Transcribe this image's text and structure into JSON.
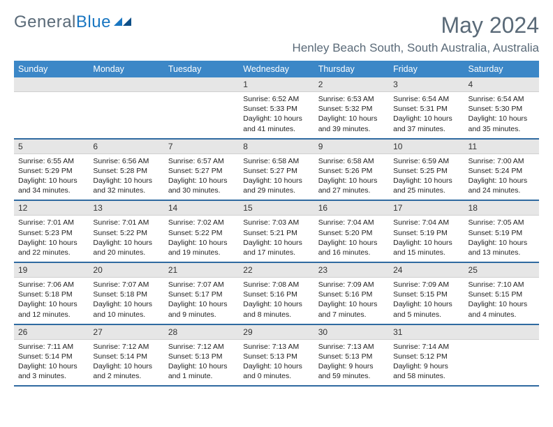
{
  "brand": {
    "part1": "General",
    "part2": "Blue"
  },
  "title": "May 2024",
  "location": "Henley Beach South, South Australia, Australia",
  "colors": {
    "header_bg": "#3c87c7",
    "header_text": "#ffffff",
    "date_bg": "#e6e6e6",
    "divider": "#2f6aa0",
    "title_color": "#5a6a78"
  },
  "daynames": [
    "Sunday",
    "Monday",
    "Tuesday",
    "Wednesday",
    "Thursday",
    "Friday",
    "Saturday"
  ],
  "weeks": [
    [
      {
        "date": "",
        "lines": []
      },
      {
        "date": "",
        "lines": []
      },
      {
        "date": "",
        "lines": []
      },
      {
        "date": "1",
        "lines": [
          "Sunrise: 6:52 AM",
          "Sunset: 5:33 PM",
          "Daylight: 10 hours",
          "and 41 minutes."
        ]
      },
      {
        "date": "2",
        "lines": [
          "Sunrise: 6:53 AM",
          "Sunset: 5:32 PM",
          "Daylight: 10 hours",
          "and 39 minutes."
        ]
      },
      {
        "date": "3",
        "lines": [
          "Sunrise: 6:54 AM",
          "Sunset: 5:31 PM",
          "Daylight: 10 hours",
          "and 37 minutes."
        ]
      },
      {
        "date": "4",
        "lines": [
          "Sunrise: 6:54 AM",
          "Sunset: 5:30 PM",
          "Daylight: 10 hours",
          "and 35 minutes."
        ]
      }
    ],
    [
      {
        "date": "5",
        "lines": [
          "Sunrise: 6:55 AM",
          "Sunset: 5:29 PM",
          "Daylight: 10 hours",
          "and 34 minutes."
        ]
      },
      {
        "date": "6",
        "lines": [
          "Sunrise: 6:56 AM",
          "Sunset: 5:28 PM",
          "Daylight: 10 hours",
          "and 32 minutes."
        ]
      },
      {
        "date": "7",
        "lines": [
          "Sunrise: 6:57 AM",
          "Sunset: 5:27 PM",
          "Daylight: 10 hours",
          "and 30 minutes."
        ]
      },
      {
        "date": "8",
        "lines": [
          "Sunrise: 6:58 AM",
          "Sunset: 5:27 PM",
          "Daylight: 10 hours",
          "and 29 minutes."
        ]
      },
      {
        "date": "9",
        "lines": [
          "Sunrise: 6:58 AM",
          "Sunset: 5:26 PM",
          "Daylight: 10 hours",
          "and 27 minutes."
        ]
      },
      {
        "date": "10",
        "lines": [
          "Sunrise: 6:59 AM",
          "Sunset: 5:25 PM",
          "Daylight: 10 hours",
          "and 25 minutes."
        ]
      },
      {
        "date": "11",
        "lines": [
          "Sunrise: 7:00 AM",
          "Sunset: 5:24 PM",
          "Daylight: 10 hours",
          "and 24 minutes."
        ]
      }
    ],
    [
      {
        "date": "12",
        "lines": [
          "Sunrise: 7:01 AM",
          "Sunset: 5:23 PM",
          "Daylight: 10 hours",
          "and 22 minutes."
        ]
      },
      {
        "date": "13",
        "lines": [
          "Sunrise: 7:01 AM",
          "Sunset: 5:22 PM",
          "Daylight: 10 hours",
          "and 20 minutes."
        ]
      },
      {
        "date": "14",
        "lines": [
          "Sunrise: 7:02 AM",
          "Sunset: 5:22 PM",
          "Daylight: 10 hours",
          "and 19 minutes."
        ]
      },
      {
        "date": "15",
        "lines": [
          "Sunrise: 7:03 AM",
          "Sunset: 5:21 PM",
          "Daylight: 10 hours",
          "and 17 minutes."
        ]
      },
      {
        "date": "16",
        "lines": [
          "Sunrise: 7:04 AM",
          "Sunset: 5:20 PM",
          "Daylight: 10 hours",
          "and 16 minutes."
        ]
      },
      {
        "date": "17",
        "lines": [
          "Sunrise: 7:04 AM",
          "Sunset: 5:19 PM",
          "Daylight: 10 hours",
          "and 15 minutes."
        ]
      },
      {
        "date": "18",
        "lines": [
          "Sunrise: 7:05 AM",
          "Sunset: 5:19 PM",
          "Daylight: 10 hours",
          "and 13 minutes."
        ]
      }
    ],
    [
      {
        "date": "19",
        "lines": [
          "Sunrise: 7:06 AM",
          "Sunset: 5:18 PM",
          "Daylight: 10 hours",
          "and 12 minutes."
        ]
      },
      {
        "date": "20",
        "lines": [
          "Sunrise: 7:07 AM",
          "Sunset: 5:18 PM",
          "Daylight: 10 hours",
          "and 10 minutes."
        ]
      },
      {
        "date": "21",
        "lines": [
          "Sunrise: 7:07 AM",
          "Sunset: 5:17 PM",
          "Daylight: 10 hours",
          "and 9 minutes."
        ]
      },
      {
        "date": "22",
        "lines": [
          "Sunrise: 7:08 AM",
          "Sunset: 5:16 PM",
          "Daylight: 10 hours",
          "and 8 minutes."
        ]
      },
      {
        "date": "23",
        "lines": [
          "Sunrise: 7:09 AM",
          "Sunset: 5:16 PM",
          "Daylight: 10 hours",
          "and 7 minutes."
        ]
      },
      {
        "date": "24",
        "lines": [
          "Sunrise: 7:09 AM",
          "Sunset: 5:15 PM",
          "Daylight: 10 hours",
          "and 5 minutes."
        ]
      },
      {
        "date": "25",
        "lines": [
          "Sunrise: 7:10 AM",
          "Sunset: 5:15 PM",
          "Daylight: 10 hours",
          "and 4 minutes."
        ]
      }
    ],
    [
      {
        "date": "26",
        "lines": [
          "Sunrise: 7:11 AM",
          "Sunset: 5:14 PM",
          "Daylight: 10 hours",
          "and 3 minutes."
        ]
      },
      {
        "date": "27",
        "lines": [
          "Sunrise: 7:12 AM",
          "Sunset: 5:14 PM",
          "Daylight: 10 hours",
          "and 2 minutes."
        ]
      },
      {
        "date": "28",
        "lines": [
          "Sunrise: 7:12 AM",
          "Sunset: 5:13 PM",
          "Daylight: 10 hours",
          "and 1 minute."
        ]
      },
      {
        "date": "29",
        "lines": [
          "Sunrise: 7:13 AM",
          "Sunset: 5:13 PM",
          "Daylight: 10 hours",
          "and 0 minutes."
        ]
      },
      {
        "date": "30",
        "lines": [
          "Sunrise: 7:13 AM",
          "Sunset: 5:13 PM",
          "Daylight: 9 hours",
          "and 59 minutes."
        ]
      },
      {
        "date": "31",
        "lines": [
          "Sunrise: 7:14 AM",
          "Sunset: 5:12 PM",
          "Daylight: 9 hours",
          "and 58 minutes."
        ]
      },
      {
        "date": "",
        "lines": []
      }
    ]
  ]
}
